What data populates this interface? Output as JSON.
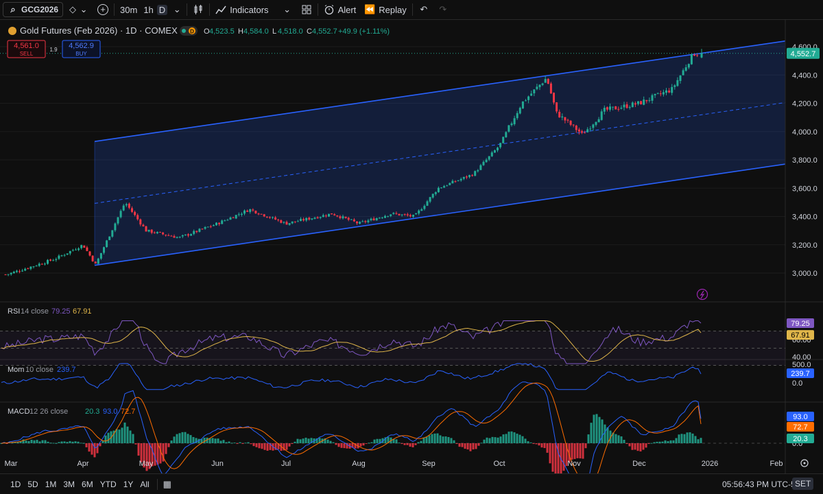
{
  "toolbar": {
    "symbol": "GCG2026",
    "intervals": [
      "30m",
      "1h",
      "D"
    ],
    "active_interval": "D",
    "indicators_label": "Indicators",
    "alert_label": "Alert",
    "replay_label": "Replay"
  },
  "header": {
    "title": "Gold Futures (Feb 2026) · 1D · COMEX",
    "badge": "D",
    "ohlc": [
      {
        "k": "O",
        "v": "4,523.5"
      },
      {
        "k": "H",
        "v": "4,584.0"
      },
      {
        "k": "L",
        "v": "4,518.0"
      },
      {
        "k": "C",
        "v": "4,552.7"
      }
    ],
    "change": "+49.9 (+1.11%)",
    "sell_price": "4,561.0",
    "sell_label": "SELL",
    "spread": "1.9",
    "buy_price": "4,562.9",
    "buy_label": "BUY"
  },
  "colors": {
    "up": "#22ab94",
    "down": "#f23645",
    "channel": "#2962ff",
    "rsi": "#7e57c2",
    "rsi_ma": "#e0b64a",
    "mom": "#2962ff",
    "macd": "#2962ff",
    "signal": "#ff6d00"
  },
  "price_axis": {
    "ticks": [
      "4,600.0",
      "4,400.0",
      "4,200.0",
      "4,000.0",
      "3,800.0",
      "3,600.0",
      "3,400.0",
      "3,200.0",
      "3,000.0"
    ],
    "last": "4,552.7"
  },
  "x_axis": {
    "labels": [
      "Mar",
      "Apr",
      "May",
      "Jun",
      "Jul",
      "Aug",
      "Sep",
      "Oct",
      "Nov",
      "Dec",
      "2026",
      "Feb"
    ]
  },
  "rsi_panel": {
    "label": "RSI",
    "params": "14 close",
    "v1": "79.25",
    "v2": "67.91",
    "ticks": [
      "80.00",
      "60.00",
      "40.00"
    ]
  },
  "mom_panel": {
    "label": "Mom",
    "params": "10 close",
    "v1": "239.7",
    "ticks": [
      "500.0",
      "0.0"
    ]
  },
  "macd_panel": {
    "label": "MACD",
    "params": "12 26 close",
    "v1": "20.3",
    "v2": "93.0",
    "v3": "72.7",
    "ticks": [
      "0.0"
    ]
  },
  "bottom": {
    "ranges": [
      "1D",
      "5D",
      "1M",
      "3M",
      "6M",
      "YTD",
      "1Y",
      "All"
    ],
    "time": "05:56:43 PM UTC-5",
    "session": "SET"
  },
  "chart_data": {
    "type": "candlestick",
    "title": "Gold Futures (Feb 2026) · 1D · COMEX",
    "ylim": [
      2950,
      4650
    ],
    "x_labels": [
      "Mar",
      "Apr",
      "May",
      "Jun",
      "Jul",
      "Aug",
      "Sep",
      "Oct",
      "Nov",
      "Dec",
      "2026",
      "Feb"
    ],
    "close_path_approx": [
      [
        "Mar 01",
        2990
      ],
      [
        "Mar 20",
        3100
      ],
      [
        "Apr 01",
        3200
      ],
      [
        "Apr 07",
        3060
      ],
      [
        "Apr 21",
        3500
      ],
      [
        "May 01",
        3300
      ],
      [
        "May 15",
        3250
      ],
      [
        "Jun 01",
        3350
      ],
      [
        "Jun 15",
        3450
      ],
      [
        "Jul 01",
        3350
      ],
      [
        "Jul 20",
        3420
      ],
      [
        "Aug 01",
        3350
      ],
      [
        "Aug 15",
        3420
      ],
      [
        "Aug 25",
        3400
      ],
      [
        "Sep 05",
        3600
      ],
      [
        "Sep 20",
        3700
      ],
      [
        "Oct 01",
        3900
      ],
      [
        "Oct 10",
        4200
      ],
      [
        "Oct 20",
        4380
      ],
      [
        "Oct 24",
        4130
      ],
      [
        "Nov 05",
        3980
      ],
      [
        "Nov 15",
        4150
      ],
      [
        "Dec 01",
        4200
      ],
      [
        "Dec 15",
        4300
      ],
      [
        "Dec 24",
        4550
      ]
    ],
    "last": {
      "open": 4523.5,
      "high": 4584.0,
      "low": 4518.0,
      "close": 4552.7,
      "change": 49.9,
      "change_pct": 1.11
    },
    "channel": {
      "upper_start": 3930,
      "upper_end": 4640,
      "lower_start": 3055,
      "lower_end": 3770
    },
    "indicators": {
      "rsi": {
        "period": 14,
        "value": 79.25,
        "ma": 67.91
      },
      "momentum": {
        "period": 10,
        "value": 239.7
      },
      "macd": {
        "fast": 12,
        "slow": 26,
        "histogram": 20.3,
        "macd": 93.0,
        "signal": 72.7
      }
    }
  }
}
